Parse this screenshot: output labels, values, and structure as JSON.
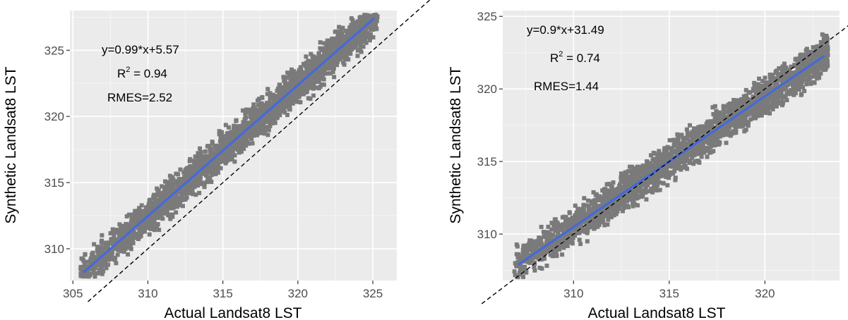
{
  "chart_data": [
    {
      "type": "scatter",
      "xlabel": "Actual Landsat8 LST",
      "ylabel": "Synthetic Landsat8 LST",
      "xlim": [
        304.8,
        326.6
      ],
      "ylim": [
        307.6,
        328.0
      ],
      "x_ticks": [
        305,
        310,
        315,
        320,
        325
      ],
      "y_ticks": [
        310,
        315,
        320,
        325
      ],
      "grid": true,
      "point_cloud": {
        "x_range": [
          305.5,
          325.3
        ],
        "regression": {
          "slope": 0.99,
          "intercept": 5.57
        },
        "spread": 1.6,
        "color": "#7a7a7a"
      },
      "fit_line": {
        "x": [
          305.7,
          325.1
        ],
        "color": "#4169e1"
      },
      "identity_line": {
        "style": "dashed",
        "color": "#000000"
      },
      "annotations": {
        "equation": "y=0.99*x+5.57",
        "r2_base": "R",
        "r2_sup": "2",
        "r2_value": " = 0.94",
        "rmse": "RMES=2.52"
      }
    },
    {
      "type": "scatter",
      "xlabel": "Actual Landsat8 LST",
      "ylabel": "Synthetic Landsat8 LST",
      "xlim": [
        306.3,
        323.9
      ],
      "ylim": [
        306.8,
        325.4
      ],
      "x_ticks": [
        310,
        315,
        320
      ],
      "y_ticks": [
        310,
        315,
        320,
        325
      ],
      "grid": true,
      "point_cloud": {
        "x_range": [
          306.9,
          323.3
        ],
        "regression": {
          "slope": 0.9,
          "intercept": 31.49
        },
        "spread": 1.45,
        "color": "#7a7a7a"
      },
      "fit_line": {
        "x": [
          307.1,
          323.1
        ],
        "color": "#4169e1"
      },
      "identity_line": {
        "style": "dashed",
        "color": "#000000"
      },
      "annotations": {
        "equation": "y=0.9*x+31.49",
        "r2_base": "R",
        "r2_sup": "2",
        "r2_value": " = 0.74",
        "rmse": "RMES=1.44"
      }
    }
  ]
}
